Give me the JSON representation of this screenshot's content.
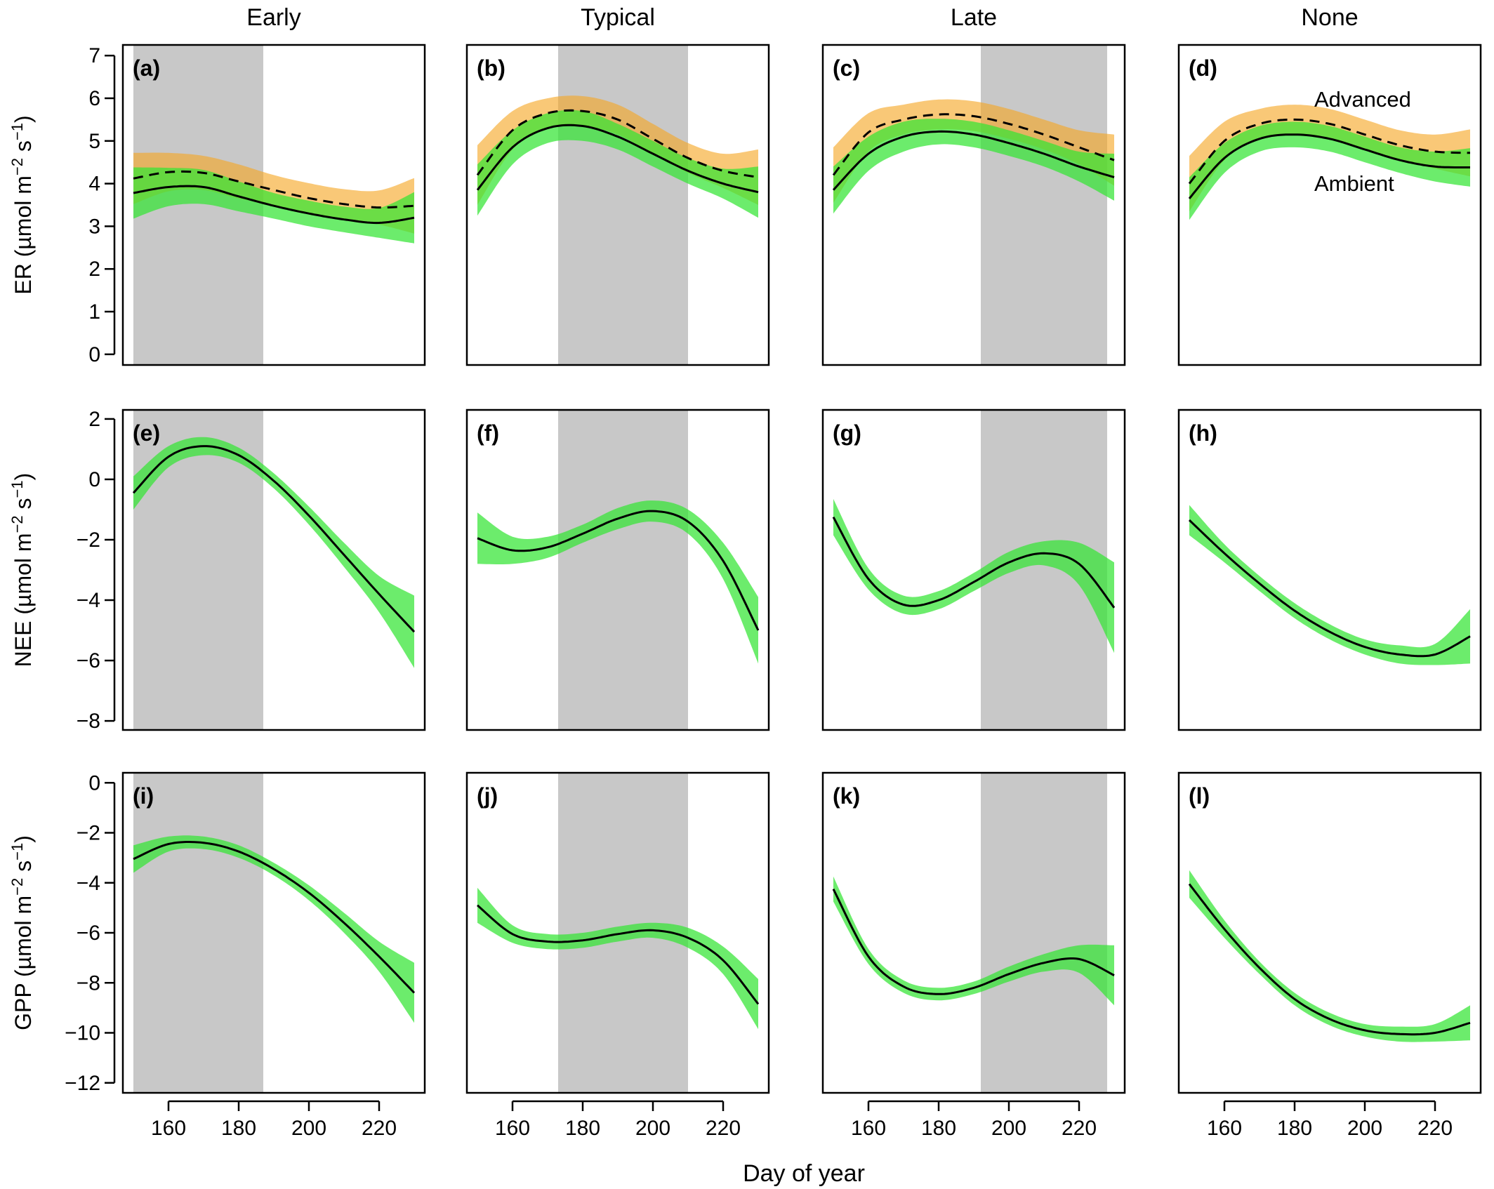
{
  "chart_data": {
    "type": "line",
    "layout": {
      "rows": 3,
      "cols": 4
    },
    "columns": [
      "Early",
      "Typical",
      "Late",
      "None"
    ],
    "xlabel": "Day of year",
    "xlim": [
      147,
      233
    ],
    "xticks": [
      160,
      180,
      200,
      220
    ],
    "colors": {
      "ambient_band": "#33e533",
      "advanced_band": "#f5a623",
      "shading": "#c8c8c8",
      "line": "#000000"
    },
    "annotations": {
      "advanced": "Advanced",
      "ambient": "Ambient"
    },
    "rows": [
      {
        "variable": "ER",
        "ylabel_main": "ER (µmol m",
        "ylabel_exp1": "−2",
        "ylabel_mid": " s",
        "ylabel_exp2": "−1",
        "ylabel_end": ")",
        "ylim": [
          -0.25,
          7.25
        ],
        "yticks": [
          0,
          1,
          2,
          3,
          4,
          5,
          6,
          7
        ],
        "ytick_labels": [
          "0",
          "1",
          "2",
          "3",
          "4",
          "5",
          "6",
          "7"
        ]
      },
      {
        "variable": "NEE",
        "ylabel_main": "NEE (µmol m",
        "ylabel_exp1": "−2",
        "ylabel_mid": " s",
        "ylabel_exp2": "−1",
        "ylabel_end": ")",
        "ylim": [
          -8.3,
          2.3
        ],
        "yticks": [
          2,
          0,
          -2,
          -4,
          -6,
          -8
        ],
        "ytick_labels": [
          "2",
          "0",
          "−2",
          "−4",
          "−6",
          "−8"
        ]
      },
      {
        "variable": "GPP",
        "ylabel_main": "GPP (µmol m",
        "ylabel_exp1": "−2",
        "ylabel_mid": " s",
        "ylabel_exp2": "−1",
        "ylabel_end": ")",
        "ylim": [
          -12.4,
          0.4
        ],
        "yticks": [
          0,
          -2,
          -4,
          -6,
          -8,
          -10,
          -12
        ],
        "ytick_labels": [
          "0",
          "−2",
          "−4",
          "−6",
          "−8",
          "−10",
          "−12"
        ]
      }
    ],
    "panels": [
      {
        "label": "(a)",
        "row": 0,
        "col": 0,
        "shade": [
          150,
          187
        ],
        "show_annotations": false,
        "ambient": {
          "x": [
            150,
            160,
            170,
            180,
            190,
            200,
            210,
            220,
            230
          ],
          "y": [
            3.78,
            3.92,
            3.92,
            3.7,
            3.48,
            3.3,
            3.16,
            3.08,
            3.2
          ],
          "band": [
            0.6,
            0.45,
            0.4,
            0.35,
            0.3,
            0.3,
            0.3,
            0.35,
            0.6
          ]
        },
        "advanced": {
          "x": [
            150,
            160,
            170,
            180,
            190,
            200,
            210,
            220,
            230
          ],
          "y": [
            4.12,
            4.27,
            4.25,
            4.05,
            3.85,
            3.66,
            3.52,
            3.44,
            3.48
          ],
          "band": [
            0.6,
            0.45,
            0.4,
            0.4,
            0.35,
            0.35,
            0.35,
            0.4,
            0.65
          ]
        }
      },
      {
        "label": "(b)",
        "row": 0,
        "col": 1,
        "shade": [
          173,
          210
        ],
        "show_annotations": false,
        "ambient": {
          "x": [
            150,
            160,
            170,
            180,
            190,
            200,
            210,
            220,
            230
          ],
          "y": [
            3.85,
            4.85,
            5.3,
            5.35,
            5.1,
            4.7,
            4.3,
            4.0,
            3.8
          ],
          "band": [
            0.6,
            0.4,
            0.35,
            0.35,
            0.3,
            0.3,
            0.3,
            0.35,
            0.6
          ]
        },
        "advanced": {
          "x": [
            150,
            160,
            170,
            180,
            190,
            200,
            210,
            220,
            230
          ],
          "y": [
            4.2,
            5.25,
            5.65,
            5.7,
            5.5,
            5.05,
            4.6,
            4.3,
            4.15
          ],
          "band": [
            0.7,
            0.45,
            0.35,
            0.35,
            0.35,
            0.35,
            0.35,
            0.4,
            0.65
          ]
        }
      },
      {
        "label": "(c)",
        "row": 0,
        "col": 2,
        "shade": [
          192,
          228
        ],
        "show_annotations": false,
        "ambient": {
          "x": [
            150,
            160,
            170,
            180,
            190,
            200,
            210,
            220,
            230
          ],
          "y": [
            3.85,
            4.7,
            5.1,
            5.22,
            5.15,
            4.95,
            4.7,
            4.4,
            4.15
          ],
          "band": [
            0.55,
            0.4,
            0.35,
            0.3,
            0.3,
            0.3,
            0.3,
            0.35,
            0.55
          ]
        },
        "advanced": {
          "x": [
            150,
            160,
            170,
            180,
            190,
            200,
            210,
            220,
            230
          ],
          "y": [
            4.2,
            5.2,
            5.5,
            5.62,
            5.58,
            5.4,
            5.15,
            4.85,
            4.55
          ],
          "band": [
            0.65,
            0.45,
            0.35,
            0.35,
            0.35,
            0.35,
            0.35,
            0.4,
            0.6
          ]
        }
      },
      {
        "label": "(d)",
        "row": 0,
        "col": 3,
        "shade": null,
        "show_annotations": true,
        "ambient": {
          "x": [
            150,
            160,
            170,
            180,
            190,
            200,
            210,
            220,
            230
          ],
          "y": [
            3.65,
            4.6,
            5.05,
            5.15,
            5.05,
            4.8,
            4.55,
            4.4,
            4.38
          ],
          "band": [
            0.5,
            0.35,
            0.3,
            0.3,
            0.3,
            0.3,
            0.3,
            0.35,
            0.45
          ]
        },
        "advanced": {
          "x": [
            150,
            160,
            170,
            180,
            190,
            200,
            210,
            220,
            230
          ],
          "y": [
            4.0,
            5.0,
            5.4,
            5.5,
            5.4,
            5.15,
            4.9,
            4.75,
            4.72
          ],
          "band": [
            0.65,
            0.45,
            0.35,
            0.35,
            0.35,
            0.35,
            0.35,
            0.4,
            0.55
          ]
        }
      },
      {
        "label": "(e)",
        "row": 1,
        "col": 0,
        "shade": [
          150,
          187
        ],
        "ambient": {
          "x": [
            150,
            160,
            170,
            180,
            190,
            200,
            210,
            220,
            230
          ],
          "y": [
            -0.45,
            0.75,
            1.1,
            0.8,
            -0.05,
            -1.2,
            -2.5,
            -3.8,
            -5.05
          ],
          "band": [
            0.55,
            0.35,
            0.3,
            0.25,
            0.25,
            0.3,
            0.4,
            0.6,
            1.2
          ]
        }
      },
      {
        "label": "(f)",
        "row": 1,
        "col": 1,
        "shade": [
          173,
          210
        ],
        "ambient": {
          "x": [
            150,
            160,
            170,
            180,
            190,
            200,
            210,
            220,
            230
          ],
          "y": [
            -1.95,
            -2.35,
            -2.25,
            -1.8,
            -1.3,
            -1.05,
            -1.4,
            -2.7,
            -5.0
          ],
          "band": [
            0.85,
            0.45,
            0.35,
            0.3,
            0.35,
            0.35,
            0.4,
            0.6,
            1.1
          ]
        }
      },
      {
        "label": "(g)",
        "row": 1,
        "col": 2,
        "shade": [
          192,
          228
        ],
        "ambient": {
          "x": [
            150,
            160,
            170,
            180,
            190,
            200,
            210,
            220,
            230
          ],
          "y": [
            -1.25,
            -3.3,
            -4.15,
            -4.0,
            -3.4,
            -2.75,
            -2.45,
            -2.8,
            -4.25
          ],
          "band": [
            0.6,
            0.35,
            0.3,
            0.3,
            0.3,
            0.35,
            0.4,
            0.7,
            1.5
          ]
        }
      },
      {
        "label": "(h)",
        "row": 1,
        "col": 3,
        "shade": null,
        "ambient": {
          "x": [
            150,
            160,
            170,
            180,
            190,
            200,
            210,
            220,
            230
          ],
          "y": [
            -1.35,
            -2.45,
            -3.45,
            -4.35,
            -5.05,
            -5.55,
            -5.8,
            -5.8,
            -5.2
          ],
          "band": [
            0.5,
            0.3,
            0.25,
            0.25,
            0.25,
            0.25,
            0.3,
            0.35,
            0.9
          ]
        }
      },
      {
        "label": "(i)",
        "row": 2,
        "col": 0,
        "shade": [
          150,
          187
        ],
        "ambient": {
          "x": [
            150,
            160,
            170,
            180,
            190,
            200,
            210,
            220,
            230
          ],
          "y": [
            -3.05,
            -2.45,
            -2.4,
            -2.75,
            -3.45,
            -4.4,
            -5.6,
            -6.95,
            -8.4
          ],
          "band": [
            0.55,
            0.3,
            0.25,
            0.25,
            0.25,
            0.3,
            0.4,
            0.6,
            1.2
          ]
        }
      },
      {
        "label": "(j)",
        "row": 2,
        "col": 1,
        "shade": [
          173,
          210
        ],
        "ambient": {
          "x": [
            150,
            160,
            170,
            180,
            190,
            200,
            210,
            220,
            230
          ],
          "y": [
            -4.9,
            -6.05,
            -6.35,
            -6.3,
            -6.05,
            -5.9,
            -6.2,
            -7.1,
            -8.85
          ],
          "band": [
            0.7,
            0.35,
            0.3,
            0.3,
            0.3,
            0.3,
            0.4,
            0.55,
            1.0
          ]
        }
      },
      {
        "label": "(k)",
        "row": 2,
        "col": 2,
        "shade": [
          192,
          228
        ],
        "ambient": {
          "x": [
            150,
            160,
            170,
            180,
            190,
            200,
            210,
            220,
            230
          ],
          "y": [
            -4.25,
            -6.95,
            -8.15,
            -8.45,
            -8.2,
            -7.65,
            -7.2,
            -7.05,
            -7.7
          ],
          "band": [
            0.5,
            0.3,
            0.25,
            0.25,
            0.25,
            0.3,
            0.35,
            0.55,
            1.2
          ]
        }
      },
      {
        "label": "(l)",
        "row": 2,
        "col": 3,
        "shade": null,
        "ambient": {
          "x": [
            150,
            160,
            170,
            180,
            190,
            200,
            210,
            220,
            230
          ],
          "y": [
            -4.05,
            -5.85,
            -7.4,
            -8.65,
            -9.45,
            -9.9,
            -10.05,
            -10.0,
            -9.6
          ],
          "band": [
            0.55,
            0.35,
            0.25,
            0.25,
            0.25,
            0.25,
            0.3,
            0.35,
            0.7
          ]
        }
      }
    ]
  }
}
